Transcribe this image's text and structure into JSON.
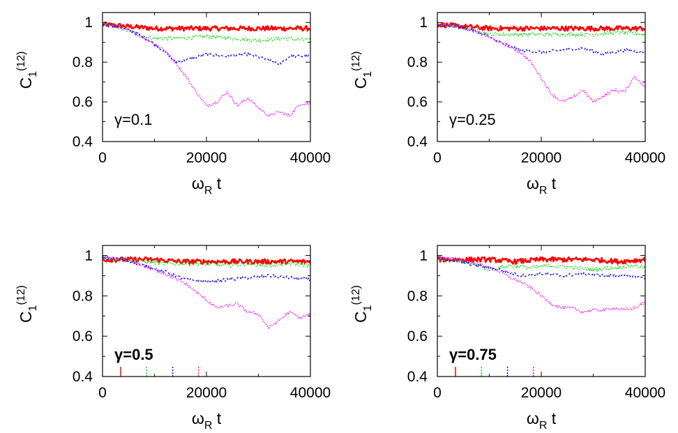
{
  "chart_data": [
    {
      "type": "line",
      "annotation": "γ=0.1",
      "xlabel": "ω_R t",
      "ylabel": "C_1^(12)",
      "xlim": [
        0,
        40000
      ],
      "ylim": [
        0.4,
        1.05
      ],
      "x_ticks": [
        "0",
        "20000",
        "40000"
      ],
      "y_ticks": [
        "0.4",
        "0.6",
        "0.8",
        "1"
      ],
      "legend": "none",
      "grid": false,
      "series": [
        {
          "color": "#ff0000",
          "x": [
            0,
            5000,
            10000,
            15000,
            20000,
            25000,
            30000,
            35000,
            40000
          ],
          "y": [
            0.99,
            0.98,
            0.97,
            0.97,
            0.97,
            0.97,
            0.97,
            0.97,
            0.97
          ]
        },
        {
          "color": "#00dd00",
          "x": [
            0,
            3000,
            6000,
            8000,
            10000,
            15000,
            20000,
            25000,
            30000,
            35000,
            40000
          ],
          "y": [
            0.99,
            0.98,
            0.95,
            0.93,
            0.92,
            0.92,
            0.93,
            0.92,
            0.91,
            0.92,
            0.91
          ]
        },
        {
          "color": "#0000ff",
          "x": [
            0,
            3000,
            6000,
            9000,
            12000,
            14000,
            16000,
            20000,
            24000,
            28000,
            32000,
            34000,
            36000,
            40000
          ],
          "y": [
            0.99,
            0.98,
            0.95,
            0.91,
            0.85,
            0.8,
            0.81,
            0.84,
            0.83,
            0.84,
            0.81,
            0.79,
            0.83,
            0.83
          ]
        },
        {
          "color": "#ff00ff",
          "x": [
            0,
            3000,
            6000,
            9000,
            12000,
            14000,
            16000,
            18000,
            20000,
            22000,
            24000,
            26000,
            28000,
            30000,
            32000,
            34000,
            36000,
            38000,
            40000
          ],
          "y": [
            0.99,
            0.98,
            0.95,
            0.91,
            0.86,
            0.8,
            0.73,
            0.65,
            0.58,
            0.6,
            0.65,
            0.58,
            0.62,
            0.57,
            0.53,
            0.55,
            0.53,
            0.59,
            0.59
          ]
        }
      ]
    },
    {
      "type": "line",
      "annotation": "γ=0.25",
      "xlabel": "ω_R t",
      "ylabel": "C_1^(12)",
      "xlim": [
        0,
        40000
      ],
      "ylim": [
        0.4,
        1.05
      ],
      "x_ticks": [
        "0",
        "20000",
        "40000"
      ],
      "y_ticks": [
        "0.4",
        "0.6",
        "0.8",
        "1"
      ],
      "legend": "none",
      "grid": false,
      "series": [
        {
          "color": "#ff0000",
          "x": [
            0,
            5000,
            10000,
            15000,
            20000,
            25000,
            30000,
            35000,
            40000
          ],
          "y": [
            0.99,
            0.98,
            0.97,
            0.97,
            0.97,
            0.97,
            0.97,
            0.97,
            0.97
          ]
        },
        {
          "color": "#00dd00",
          "x": [
            0,
            4000,
            8000,
            10000,
            15000,
            20000,
            25000,
            30000,
            35000,
            40000
          ],
          "y": [
            0.99,
            0.98,
            0.96,
            0.94,
            0.94,
            0.94,
            0.94,
            0.94,
            0.95,
            0.94
          ]
        },
        {
          "color": "#0000ff",
          "x": [
            0,
            4000,
            8000,
            12000,
            16000,
            20000,
            24000,
            28000,
            32000,
            36000,
            40000
          ],
          "y": [
            0.99,
            0.98,
            0.95,
            0.9,
            0.86,
            0.85,
            0.86,
            0.87,
            0.84,
            0.86,
            0.85
          ]
        },
        {
          "color": "#ff00ff",
          "x": [
            0,
            4000,
            8000,
            12000,
            16000,
            18000,
            20000,
            22000,
            24000,
            26000,
            28000,
            30000,
            32000,
            34000,
            36000,
            38000,
            40000
          ],
          "y": [
            0.99,
            0.98,
            0.95,
            0.9,
            0.85,
            0.8,
            0.72,
            0.64,
            0.6,
            0.62,
            0.66,
            0.6,
            0.63,
            0.66,
            0.65,
            0.73,
            0.67
          ]
        }
      ]
    },
    {
      "type": "line",
      "annotation": "γ=0.5",
      "xlabel": "ω_R t",
      "ylabel": "C_1^(12)",
      "xlim": [
        0,
        40000
      ],
      "ylim": [
        0.4,
        1.05
      ],
      "x_ticks": [
        "0",
        "20000",
        "40000"
      ],
      "y_ticks": [
        "0.4",
        "0.6",
        "0.8",
        "1"
      ],
      "legend": "none",
      "grid": false,
      "markers_x": [
        3500,
        8500,
        13500,
        18500
      ],
      "series": [
        {
          "color": "#ff0000",
          "x": [
            0,
            5000,
            10000,
            15000,
            20000,
            25000,
            30000,
            35000,
            40000
          ],
          "y": [
            0.98,
            0.98,
            0.98,
            0.97,
            0.97,
            0.97,
            0.97,
            0.97,
            0.97
          ]
        },
        {
          "color": "#00dd00",
          "x": [
            0,
            4000,
            8000,
            12000,
            16000,
            20000,
            24000,
            28000,
            32000,
            36000,
            40000
          ],
          "y": [
            0.99,
            0.98,
            0.97,
            0.96,
            0.96,
            0.96,
            0.95,
            0.96,
            0.95,
            0.96,
            0.95
          ]
        },
        {
          "color": "#0000ff",
          "x": [
            0,
            4000,
            8000,
            12000,
            16000,
            20000,
            24000,
            28000,
            32000,
            36000,
            40000
          ],
          "y": [
            0.99,
            0.98,
            0.95,
            0.92,
            0.88,
            0.87,
            0.88,
            0.89,
            0.9,
            0.89,
            0.88
          ]
        },
        {
          "color": "#ff00ff",
          "x": [
            0,
            4000,
            8000,
            12000,
            16000,
            18000,
            20000,
            22000,
            24000,
            26000,
            28000,
            30000,
            32000,
            34000,
            36000,
            38000,
            40000
          ],
          "y": [
            0.99,
            0.98,
            0.95,
            0.91,
            0.86,
            0.82,
            0.78,
            0.74,
            0.75,
            0.76,
            0.72,
            0.71,
            0.64,
            0.68,
            0.72,
            0.69,
            0.71
          ]
        }
      ]
    },
    {
      "type": "line",
      "annotation": "γ=0.75",
      "xlabel": "ω_R t",
      "ylabel": "C_1^(12)",
      "xlim": [
        0,
        40000
      ],
      "ylim": [
        0.4,
        1.05
      ],
      "x_ticks": [
        "0",
        "20000",
        "40000"
      ],
      "y_ticks": [
        "0.4",
        "0.6",
        "0.8",
        "1"
      ],
      "legend": "none",
      "grid": false,
      "markers_x": [
        3500,
        8500,
        13500,
        18500
      ],
      "series": [
        {
          "color": "#ff0000",
          "x": [
            0,
            5000,
            10000,
            15000,
            20000,
            25000,
            30000,
            35000,
            40000
          ],
          "y": [
            0.98,
            0.98,
            0.98,
            0.97,
            0.98,
            0.98,
            0.98,
            0.97,
            0.98
          ]
        },
        {
          "color": "#00dd00",
          "x": [
            0,
            4000,
            8000,
            10000,
            14000,
            18000,
            22000,
            26000,
            30000,
            34000,
            38000,
            40000
          ],
          "y": [
            0.98,
            0.97,
            0.95,
            0.93,
            0.95,
            0.94,
            0.95,
            0.94,
            0.93,
            0.94,
            0.95,
            0.94
          ]
        },
        {
          "color": "#0000ff",
          "x": [
            0,
            4000,
            8000,
            12000,
            16000,
            20000,
            24000,
            28000,
            32000,
            36000,
            40000
          ],
          "y": [
            0.99,
            0.97,
            0.95,
            0.93,
            0.9,
            0.91,
            0.9,
            0.91,
            0.9,
            0.9,
            0.89
          ]
        },
        {
          "color": "#ff00ff",
          "x": [
            0,
            4000,
            8000,
            12000,
            14000,
            16000,
            18000,
            20000,
            22000,
            24000,
            26000,
            28000,
            30000,
            32000,
            34000,
            36000,
            38000,
            40000
          ],
          "y": [
            0.99,
            0.98,
            0.96,
            0.92,
            0.89,
            0.87,
            0.84,
            0.8,
            0.76,
            0.74,
            0.74,
            0.72,
            0.73,
            0.73,
            0.74,
            0.73,
            0.74,
            0.77
          ]
        }
      ]
    }
  ]
}
